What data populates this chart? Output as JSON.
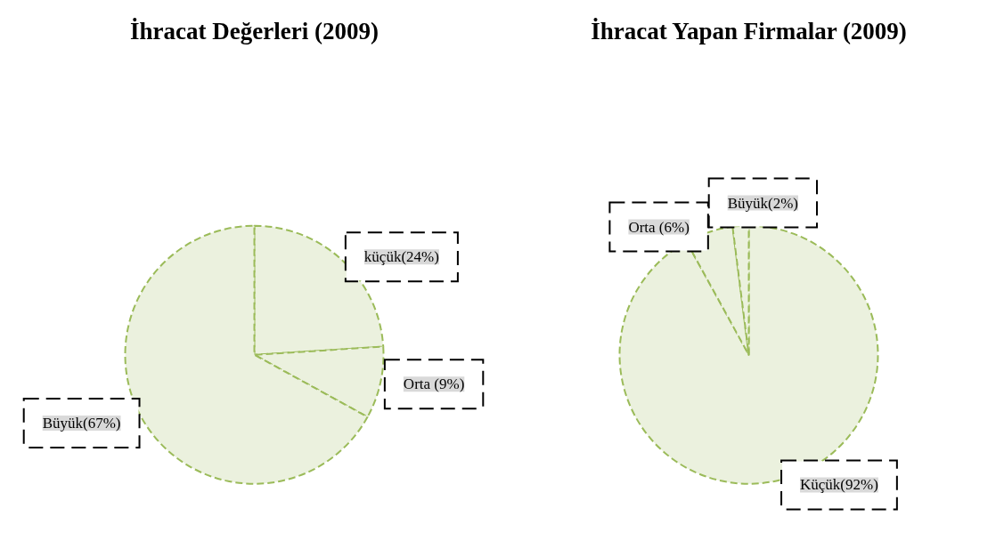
{
  "chart_data": [
    {
      "type": "pie",
      "title": "İhracat Değerleri (2009)",
      "categories": [
        "küçük(24%)",
        "Orta (9%)",
        "Büyük(67%)"
      ],
      "values": [
        24,
        9,
        67
      ],
      "colors": [
        "#ebf1de",
        "#ebf1de",
        "#ebf1de"
      ]
    },
    {
      "type": "pie",
      "title": "İhracat Yapan Firmalar (2009)",
      "categories": [
        "Küçük(92%)",
        "Orta (6%)",
        "Büyük(2%)"
      ],
      "values": [
        92,
        6,
        2
      ],
      "colors": [
        "#ebf1de",
        "#ebf1de",
        "#ebf1de"
      ]
    }
  ]
}
